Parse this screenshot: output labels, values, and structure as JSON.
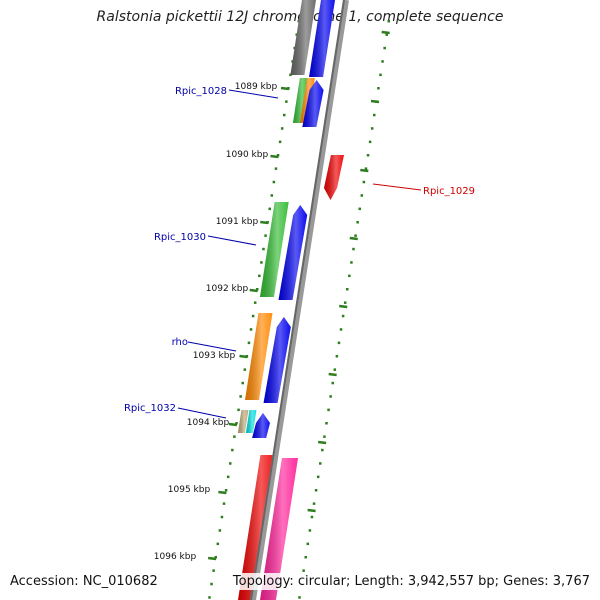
{
  "title": "Ralstonia pickettii 12J chromosome 1, complete sequence",
  "footer": {
    "accession": "Accession: NC_010682",
    "topology": "Topology: circular; Length: 3,942,557 bp; Genes: 3,767"
  },
  "colors": {
    "backbone": "#888888",
    "tick": "#2e7d1e",
    "label_blue": "#0000aa",
    "label_red": "#cc0000",
    "gene_blue": "#0000ee",
    "gene_gray": "#666666",
    "gene_green": "#33bb33",
    "gene_orange": "#ff8800",
    "gene_red": "#ee0000",
    "gene_pink": "#ff2299",
    "gene_tan": "#bba877",
    "gene_cyan": "#00dddd"
  },
  "kbp_labels": [
    "1089 kbp",
    "1090 kbp",
    "1091 kbp",
    "1092 kbp",
    "1093 kbp",
    "1094 kbp",
    "1095 kbp",
    "1096 kbp"
  ],
  "gene_labels": [
    {
      "name": "Rpic_1028",
      "color": "label_blue"
    },
    {
      "name": "Rpic_1029",
      "color": "label_red"
    },
    {
      "name": "Rpic_1030",
      "color": "label_blue"
    },
    {
      "name": "rho",
      "color": "label_blue"
    },
    {
      "name": "Rpic_1032",
      "color": "label_blue"
    }
  ]
}
